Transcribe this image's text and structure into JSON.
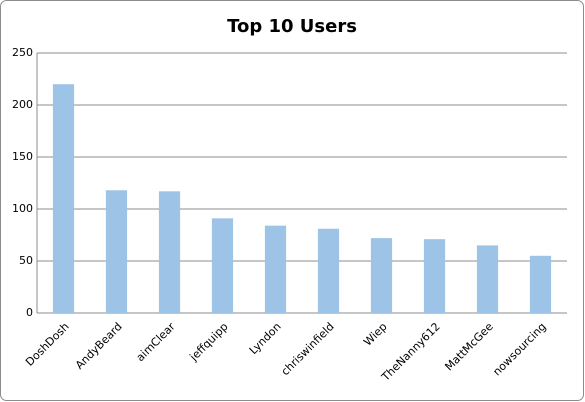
{
  "chart_data": {
    "type": "bar",
    "title": "Top 10 Users",
    "categories": [
      "DoshDosh",
      "AndyBeard",
      "aimClear",
      "jeffquipp",
      "Lyndon",
      "chriswinfield",
      "Wiep",
      "TheNanny612",
      "MattMcGee",
      "nowsourcing"
    ],
    "values": [
      220,
      118,
      117,
      91,
      84,
      81,
      72,
      71,
      65,
      55
    ],
    "color": "#9dc3e6",
    "ylim": [
      0,
      250
    ],
    "yticks": [
      0,
      50,
      100,
      150,
      200,
      250
    ],
    "grid": true
  }
}
